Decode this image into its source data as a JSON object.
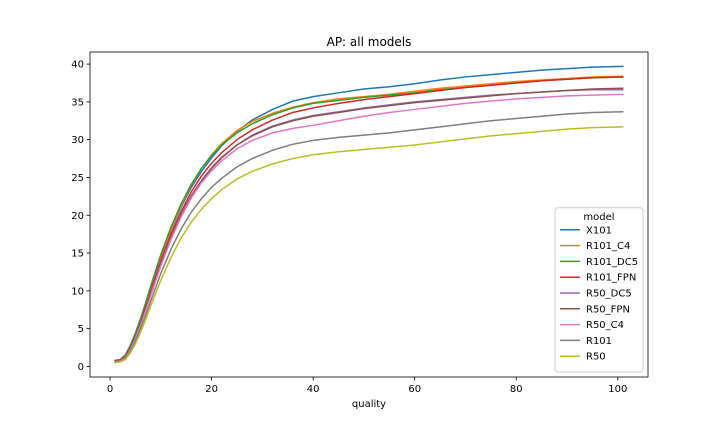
{
  "chart_data": {
    "type": "line",
    "title": "AP: all models",
    "xlabel": "quality",
    "ylabel": "",
    "xlim": [
      -3.95,
      105.95
    ],
    "ylim": [
      -1.4,
      41.6
    ],
    "xticks": [
      0,
      20,
      40,
      60,
      80,
      100
    ],
    "yticks": [
      0,
      5,
      10,
      15,
      20,
      25,
      30,
      35,
      40
    ],
    "grid": false,
    "legend": {
      "title": "model",
      "placement": "lower-right"
    },
    "x": [
      1,
      2,
      3,
      4,
      5,
      6,
      7,
      8,
      10,
      12,
      14,
      16,
      18,
      20,
      22,
      25,
      28,
      32,
      36,
      40,
      45,
      50,
      55,
      60,
      65,
      70,
      75,
      80,
      85,
      90,
      95,
      101
    ],
    "series": [
      {
        "name": "X101",
        "color": "#1f77b4",
        "values": [
          0.8,
          0.9,
          1.5,
          2.8,
          4.4,
          6.2,
          8.2,
          10.3,
          14.4,
          18.0,
          21.1,
          23.7,
          25.8,
          27.6,
          29.2,
          31.1,
          32.6,
          34.0,
          35.1,
          35.7,
          36.2,
          36.7,
          37.0,
          37.4,
          37.9,
          38.3,
          38.6,
          38.9,
          39.2,
          39.4,
          39.6,
          39.7
        ]
      },
      {
        "name": "R101_C4",
        "color": "#ff7f0e",
        "values": [
          0.7,
          0.8,
          1.4,
          2.7,
          4.3,
          6.1,
          8.1,
          10.3,
          14.5,
          18.1,
          21.3,
          24.0,
          26.2,
          28.0,
          29.5,
          31.2,
          32.4,
          33.5,
          34.3,
          34.9,
          35.4,
          35.7,
          36.0,
          36.4,
          36.8,
          37.1,
          37.4,
          37.7,
          37.9,
          38.1,
          38.3,
          38.4
        ]
      },
      {
        "name": "R101_DC5",
        "color": "#2ca02c",
        "values": [
          0.7,
          0.8,
          1.4,
          2.7,
          4.4,
          6.3,
          8.4,
          10.6,
          14.8,
          18.4,
          21.5,
          24.1,
          26.2,
          27.9,
          29.3,
          30.9,
          32.1,
          33.3,
          34.2,
          34.8,
          35.2,
          35.6,
          35.9,
          36.2,
          36.6,
          36.9,
          37.2,
          37.5,
          37.8,
          38.0,
          38.2,
          38.3
        ]
      },
      {
        "name": "R101_FPN",
        "color": "#d62728",
        "values": [
          0.7,
          0.8,
          1.3,
          2.5,
          4.0,
          5.8,
          7.8,
          9.9,
          14.0,
          17.5,
          20.5,
          23.1,
          25.2,
          26.9,
          28.3,
          30.0,
          31.3,
          32.6,
          33.6,
          34.2,
          34.8,
          35.3,
          35.7,
          36.1,
          36.5,
          36.9,
          37.2,
          37.5,
          37.8,
          38.0,
          38.2,
          38.3
        ]
      },
      {
        "name": "R50_DC5",
        "color": "#9467bd",
        "values": [
          0.6,
          0.7,
          1.2,
          2.4,
          3.9,
          5.6,
          7.5,
          9.6,
          13.6,
          17.1,
          20.1,
          22.6,
          24.6,
          26.3,
          27.7,
          29.3,
          30.6,
          31.8,
          32.6,
          33.2,
          33.7,
          34.2,
          34.6,
          35.0,
          35.3,
          35.6,
          35.9,
          36.1,
          36.3,
          36.5,
          36.6,
          36.6
        ]
      },
      {
        "name": "R50_FPN",
        "color": "#8c564b",
        "values": [
          0.6,
          0.7,
          1.2,
          2.4,
          3.9,
          5.6,
          7.5,
          9.5,
          13.5,
          17.0,
          20.0,
          22.5,
          24.5,
          26.2,
          27.6,
          29.3,
          30.5,
          31.7,
          32.5,
          33.1,
          33.6,
          34.1,
          34.5,
          34.9,
          35.2,
          35.5,
          35.8,
          36.1,
          36.3,
          36.5,
          36.7,
          36.8
        ]
      },
      {
        "name": "R50_C4",
        "color": "#e377c2",
        "values": [
          0.6,
          0.7,
          1.1,
          2.2,
          3.7,
          5.4,
          7.3,
          9.3,
          13.3,
          16.8,
          19.8,
          22.3,
          24.3,
          25.9,
          27.2,
          28.8,
          29.9,
          30.9,
          31.5,
          31.9,
          32.5,
          33.1,
          33.6,
          34.0,
          34.4,
          34.8,
          35.1,
          35.4,
          35.6,
          35.8,
          35.9,
          36.0
        ]
      },
      {
        "name": "R101",
        "color": "#7f7f7f",
        "values": [
          0.6,
          0.6,
          1.0,
          2.0,
          3.4,
          5.0,
          6.7,
          8.6,
          12.3,
          15.5,
          18.2,
          20.4,
          22.2,
          23.7,
          24.9,
          26.4,
          27.5,
          28.6,
          29.4,
          29.9,
          30.3,
          30.6,
          30.9,
          31.3,
          31.7,
          32.1,
          32.5,
          32.8,
          33.1,
          33.4,
          33.6,
          33.7
        ]
      },
      {
        "name": "R50",
        "color": "#bcbd22",
        "values": [
          0.5,
          0.6,
          0.9,
          1.8,
          3.0,
          4.5,
          6.2,
          8.0,
          11.4,
          14.4,
          17.0,
          19.1,
          20.8,
          22.2,
          23.4,
          24.8,
          25.8,
          26.8,
          27.5,
          28.0,
          28.4,
          28.7,
          29.0,
          29.3,
          29.7,
          30.1,
          30.5,
          30.8,
          31.1,
          31.4,
          31.6,
          31.7
        ]
      }
    ]
  }
}
